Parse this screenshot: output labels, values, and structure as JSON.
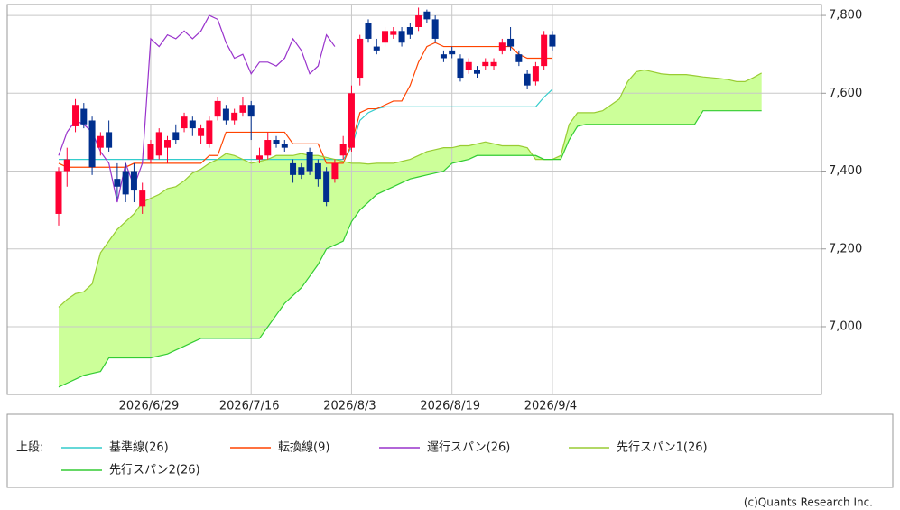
{
  "chart_data": {
    "type": "candlestick",
    "categories": [
      null,
      null,
      null,
      null,
      null,
      null,
      null,
      null,
      null,
      null,
      null,
      "2026/6/29",
      null,
      null,
      null,
      null,
      null,
      null,
      null,
      null,
      null,
      null,
      null,
      "2026/7/16",
      null,
      null,
      null,
      null,
      null,
      null,
      null,
      null,
      null,
      null,
      null,
      "2026/8/3",
      null,
      null,
      null,
      null,
      null,
      null,
      null,
      null,
      null,
      null,
      null,
      "2026/8/19",
      null,
      null,
      null,
      null,
      null,
      null,
      null,
      null,
      null,
      null,
      null,
      "2026/9/4",
      null,
      null,
      null,
      null,
      null,
      null,
      null,
      null,
      null,
      null,
      null,
      null,
      null,
      null,
      null,
      null,
      null,
      null,
      null,
      null,
      null,
      null,
      null,
      null,
      null
    ],
    "ohlc": {
      "up_color": "#ff0033",
      "down_color": "#002f8e",
      "open": [
        7290,
        7400,
        7515,
        7560,
        7530,
        7460,
        7500,
        7380,
        7400,
        7400,
        7310,
        7430,
        7440,
        7460,
        7500,
        7510,
        7530,
        7490,
        7470,
        7540,
        7560,
        7530,
        7550,
        7570,
        7430,
        7440,
        7480,
        7470,
        7420,
        7410,
        7450,
        7420,
        7400,
        7380,
        7440,
        7460,
        7640,
        7780,
        7720,
        7730,
        7750,
        7760,
        7770,
        7770,
        7810,
        7790,
        7700,
        7710,
        7690,
        7660,
        7660,
        7670,
        7670,
        7710,
        7740,
        7700,
        7650,
        7630,
        7670,
        7750,
        null,
        null,
        null,
        null,
        null,
        null,
        null,
        null,
        null,
        null,
        null,
        null,
        null,
        null,
        null,
        null,
        null,
        null,
        null,
        null,
        null,
        null,
        null,
        null,
        null
      ],
      "high": [
        7410,
        7460,
        7585,
        7575,
        7540,
        7500,
        7530,
        7420,
        7420,
        7420,
        7370,
        7480,
        7510,
        7490,
        7520,
        7550,
        7540,
        7520,
        7540,
        7590,
        7570,
        7560,
        7590,
        7580,
        7460,
        7500,
        7490,
        7480,
        7430,
        7420,
        7460,
        7430,
        7410,
        7430,
        7490,
        7620,
        7750,
        7790,
        7740,
        7770,
        7770,
        7770,
        7780,
        7820,
        7815,
        7800,
        7710,
        7720,
        7700,
        7690,
        7670,
        7690,
        7690,
        7740,
        7770,
        7710,
        7660,
        7680,
        7760,
        7760,
        null,
        null,
        null,
        null,
        null,
        null,
        null,
        null,
        null,
        null,
        null,
        null,
        null,
        null,
        null,
        null,
        null,
        null,
        null,
        null,
        null,
        null,
        null,
        null,
        null
      ],
      "low": [
        7260,
        7360,
        7500,
        7510,
        7390,
        7440,
        7450,
        7330,
        7320,
        7320,
        7290,
        7420,
        7430,
        7420,
        7470,
        7500,
        7490,
        7470,
        7460,
        7530,
        7520,
        7520,
        7540,
        7480,
        7420,
        7430,
        7460,
        7450,
        7370,
        7380,
        7390,
        7360,
        7310,
        7370,
        7430,
        7450,
        7620,
        7730,
        7700,
        7720,
        7740,
        7720,
        7740,
        7760,
        7780,
        7730,
        7680,
        7690,
        7630,
        7650,
        7640,
        7660,
        7660,
        7700,
        7710,
        7670,
        7610,
        7620,
        7660,
        7710,
        null,
        null,
        null,
        null,
        null,
        null,
        null,
        null,
        null,
        null,
        null,
        null,
        null,
        null,
        null,
        null,
        null,
        null,
        null,
        null,
        null,
        null,
        null,
        null,
        null
      ],
      "close": [
        7400,
        7430,
        7570,
        7520,
        7410,
        7490,
        7460,
        7360,
        7340,
        7350,
        7350,
        7470,
        7500,
        7480,
        7480,
        7540,
        7510,
        7510,
        7530,
        7580,
        7530,
        7550,
        7570,
        7540,
        7440,
        7480,
        7470,
        7460,
        7390,
        7390,
        7400,
        7380,
        7320,
        7420,
        7470,
        7600,
        7740,
        7740,
        7710,
        7760,
        7760,
        7730,
        7750,
        7800,
        7790,
        7740,
        7690,
        7700,
        7640,
        7680,
        7650,
        7680,
        7680,
        7730,
        7720,
        7680,
        7620,
        7670,
        7750,
        7720,
        null,
        null,
        null,
        null,
        null,
        null,
        null,
        null,
        null,
        null,
        null,
        null,
        null,
        null,
        null,
        null,
        null,
        null,
        null,
        null,
        null,
        null,
        null,
        null,
        null
      ]
    },
    "series": [
      {
        "name": "基準線(26)",
        "color": "#33cccc",
        "values": [
          7430,
          7430,
          7430,
          7430,
          7430,
          7430,
          7430,
          7430,
          7430,
          7430,
          7430,
          7430,
          7430,
          7430,
          7430,
          7430,
          7430,
          7430,
          7430,
          7430,
          7430,
          7430,
          7430,
          7430,
          7430,
          7430,
          7430,
          7430,
          7430,
          7430,
          7430,
          7430,
          7430,
          7430,
          7430,
          7460,
          7530,
          7550,
          7560,
          7565,
          7565,
          7565,
          7565,
          7565,
          7565,
          7565,
          7565,
          7565,
          7565,
          7565,
          7565,
          7565,
          7565,
          7565,
          7565,
          7565,
          7565,
          7565,
          7590,
          7610,
          null,
          null,
          null,
          null,
          null,
          null,
          null,
          null,
          null,
          null,
          null,
          null,
          null,
          null,
          null,
          null,
          null,
          null,
          null,
          null,
          null,
          null,
          null,
          null,
          null
        ]
      },
      {
        "name": "転換線(9)",
        "color": "#ff4400",
        "values": [
          7420,
          7410,
          7410,
          7410,
          7410,
          7410,
          7410,
          7410,
          7410,
          7420,
          7420,
          7420,
          7420,
          7420,
          7420,
          7420,
          7420,
          7420,
          7440,
          7440,
          7500,
          7500,
          7500,
          7500,
          7500,
          7500,
          7500,
          7500,
          7470,
          7470,
          7470,
          7470,
          7420,
          7420,
          7420,
          7470,
          7550,
          7560,
          7560,
          7570,
          7580,
          7580,
          7620,
          7680,
          7720,
          7730,
          7720,
          7720,
          7720,
          7720,
          7720,
          7720,
          7720,
          7720,
          7720,
          7700,
          7690,
          7690,
          7690,
          7690,
          null,
          null,
          null,
          null,
          null,
          null,
          null,
          null,
          null,
          null,
          null,
          null,
          null,
          null,
          null,
          null,
          null,
          null,
          null,
          null,
          null,
          null,
          null,
          null,
          null
        ]
      },
      {
        "name": "遅行スパン(26)",
        "color": "#9933cc",
        "values": [
          7440,
          7500,
          7530,
          7520,
          7500,
          7450,
          7420,
          7320,
          7420,
          7360,
          7420,
          7740,
          7720,
          7750,
          7740,
          7760,
          7740,
          7760,
          7800,
          7790,
          7730,
          7690,
          7700,
          7650,
          7680,
          7680,
          7670,
          7690,
          7740,
          7710,
          7650,
          7670,
          7750,
          7720,
          null,
          null,
          null,
          null,
          null,
          null,
          null,
          null,
          null,
          null,
          null,
          null,
          null,
          null,
          null,
          null,
          null,
          null,
          null,
          null,
          null,
          null,
          null,
          null,
          null,
          null,
          null,
          null,
          null,
          null,
          null,
          null,
          null,
          null,
          null,
          null,
          null,
          null,
          null,
          null,
          null,
          null,
          null,
          null,
          null,
          null,
          null,
          null,
          null,
          null,
          null
        ]
      },
      {
        "name": "先行スパン1(26)",
        "color": "#99cc33",
        "values": [
          7050,
          7070,
          7085,
          7090,
          7110,
          7190,
          7220,
          7250,
          7270,
          7290,
          7320,
          7330,
          7340,
          7355,
          7360,
          7375,
          7395,
          7405,
          7420,
          7430,
          7445,
          7440,
          7430,
          7420,
          7425,
          7430,
          7440,
          7440,
          7440,
          7445,
          7440,
          7440,
          7435,
          7430,
          7425,
          7420,
          7420,
          7418,
          7420,
          7420,
          7420,
          7425,
          7430,
          7440,
          7450,
          7455,
          7460,
          7460,
          7465,
          7465,
          7470,
          7475,
          7470,
          7465,
          7465,
          7465,
          7460,
          7430,
          7430,
          7430,
          7440,
          7520,
          7550,
          7550,
          7550,
          7555,
          7570,
          7585,
          7630,
          7655,
          7660,
          7655,
          7650,
          7648,
          7648,
          7648,
          7645,
          7642,
          7640,
          7638,
          7635,
          7630,
          7630,
          7640,
          7652
        ]
      },
      {
        "name": "先行スパン2(26)",
        "color": "#33cc33",
        "values": [
          6845,
          6855,
          6865,
          6875,
          6880,
          6885,
          6920,
          6920,
          6920,
          6920,
          6920,
          6920,
          6925,
          6930,
          6940,
          6950,
          6960,
          6970,
          6970,
          6970,
          6970,
          6970,
          6970,
          6970,
          6970,
          7000,
          7030,
          7060,
          7080,
          7100,
          7130,
          7160,
          7200,
          7210,
          7220,
          7270,
          7300,
          7320,
          7340,
          7350,
          7360,
          7370,
          7380,
          7385,
          7390,
          7395,
          7400,
          7420,
          7425,
          7430,
          7440,
          7440,
          7440,
          7440,
          7440,
          7440,
          7440,
          7440,
          7430,
          7430,
          7430,
          7480,
          7515,
          7520,
          7520,
          7520,
          7520,
          7520,
          7520,
          7520,
          7520,
          7520,
          7520,
          7520,
          7520,
          7520,
          7520,
          7555,
          7555,
          7555,
          7555,
          7555,
          7555,
          7555,
          7555
        ]
      }
    ],
    "cloud_color": "#ccff99",
    "ylim": [
      6826,
      7828
    ],
    "yticks": [
      {
        "value": 7000,
        "label": "7,000"
      },
      {
        "value": 7200,
        "label": "7,200"
      },
      {
        "value": 7400,
        "label": "7,400"
      },
      {
        "value": 7600,
        "label": "7,600"
      },
      {
        "value": 7800,
        "label": "7,800"
      }
    ],
    "grid": true,
    "legend_title": "上段:",
    "credit": "(c)Quants Research Inc."
  }
}
